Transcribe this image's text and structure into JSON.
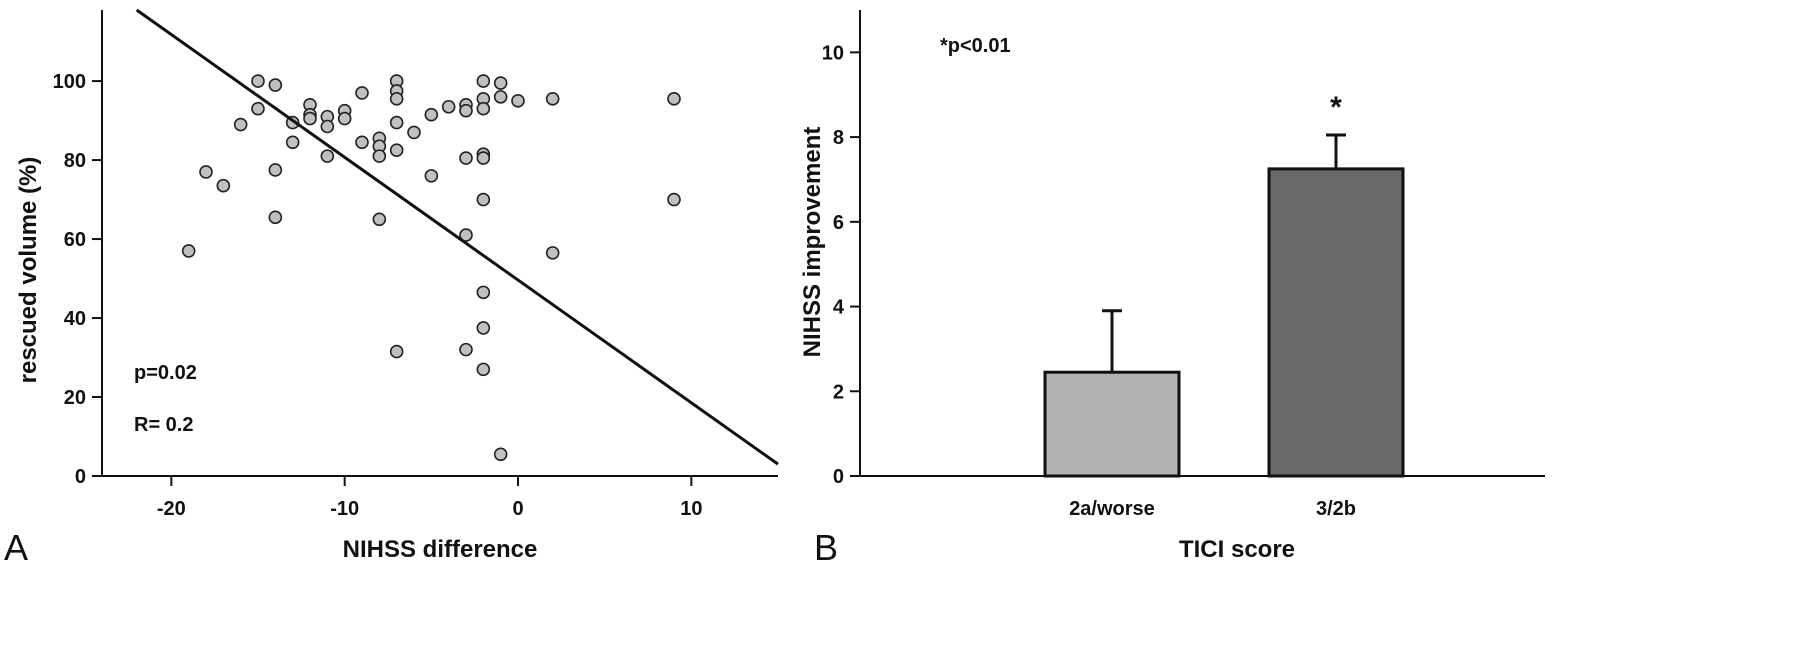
{
  "chart_data": [
    {
      "type": "scatter",
      "panel_label": "A",
      "xlabel": "NIHSS difference",
      "ylabel": "rescued volume (%)",
      "xlim": [
        -24,
        15
      ],
      "ylim": [
        0,
        118
      ],
      "xticks": [
        -20,
        -10,
        0,
        10
      ],
      "yticks": [
        0,
        20,
        40,
        60,
        80,
        100
      ],
      "point_color": "#c0c0c0",
      "points": [
        [
          -19,
          57
        ],
        [
          -18,
          77
        ],
        [
          -17,
          73.5
        ],
        [
          -16,
          89
        ],
        [
          -15,
          100
        ],
        [
          -15,
          93
        ],
        [
          -14,
          99
        ],
        [
          -14,
          77.5
        ],
        [
          -14,
          65.5
        ],
        [
          -13,
          89.5
        ],
        [
          -13,
          84.5
        ],
        [
          -12,
          94
        ],
        [
          -12,
          91.5
        ],
        [
          -12,
          90.5
        ],
        [
          -11,
          91
        ],
        [
          -11,
          88.5
        ],
        [
          -11,
          81
        ],
        [
          -10,
          92.5
        ],
        [
          -10,
          90.5
        ],
        [
          -9,
          97
        ],
        [
          -9,
          84.5
        ],
        [
          -8,
          85.5
        ],
        [
          -8,
          83.5
        ],
        [
          -8,
          81
        ],
        [
          -8,
          65
        ],
        [
          -7,
          100
        ],
        [
          -7,
          97.5
        ],
        [
          -7,
          95.5
        ],
        [
          -7,
          89.5
        ],
        [
          -7,
          82.5
        ],
        [
          -7,
          31.5
        ],
        [
          -6,
          87
        ],
        [
          -5,
          91.5
        ],
        [
          -5,
          76
        ],
        [
          -4,
          93.5
        ],
        [
          -3,
          94
        ],
        [
          -3,
          92.5
        ],
        [
          -3,
          80.5
        ],
        [
          -3,
          61
        ],
        [
          -3,
          32
        ],
        [
          -2,
          100
        ],
        [
          -2,
          95.5
        ],
        [
          -2,
          93
        ],
        [
          -2,
          81.5
        ],
        [
          -2,
          80.5
        ],
        [
          -2,
          70
        ],
        [
          -2,
          46.5
        ],
        [
          -2,
          37.5
        ],
        [
          -2,
          27
        ],
        [
          -1,
          99.5
        ],
        [
          -1,
          96
        ],
        [
          -1,
          5.5
        ],
        [
          0,
          95
        ],
        [
          2,
          95.5
        ],
        [
          2,
          56.5
        ],
        [
          9,
          95.5
        ],
        [
          9,
          70
        ]
      ],
      "regression_line": {
        "x": [
          -22,
          15
        ],
        "y": [
          118,
          3
        ]
      },
      "annotations": [
        "p=0.02",
        "R= 0.2"
      ]
    },
    {
      "type": "bar",
      "panel_label": "B",
      "xlabel": "TICI score",
      "ylabel": "NIHSS improvement",
      "ylim": [
        0,
        11
      ],
      "yticks": [
        0,
        2,
        4,
        6,
        8,
        10
      ],
      "categories": [
        "2a/worse",
        "3/2b"
      ],
      "values": [
        2.45,
        7.25
      ],
      "errors": [
        1.45,
        0.8
      ],
      "bar_colors": [
        "#b2b2b2",
        "#6a6a6a"
      ],
      "significance": [
        "",
        "*"
      ],
      "annotation": "*p<0.01"
    }
  ]
}
